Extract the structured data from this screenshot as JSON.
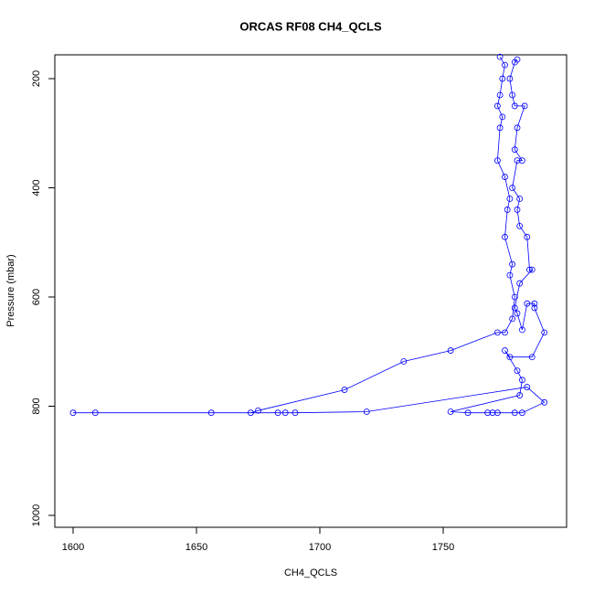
{
  "chart_data": {
    "type": "line",
    "title": "ORCAS RF08 CH4_QCLS",
    "x_label": "CH4_QCLS",
    "y_label": "Pressure (mbar)",
    "color": "#0000ff",
    "markers": true,
    "xlim": [
      1592.6,
      1800
    ],
    "ylim": [
      1021.8,
      156.4
    ],
    "xticks": [
      1600,
      1650,
      1700,
      1750
    ],
    "yticks": [
      200,
      400,
      600,
      800,
      1000
    ],
    "x": [
      1773,
      1775,
      1774,
      1773,
      1772,
      1774,
      1773,
      1772,
      1775,
      1777,
      1776,
      1775,
      1778,
      1777,
      1779,
      1778,
      1775,
      1772,
      1753,
      1734,
      1710,
      1675,
      1672,
      1656,
      1600,
      1609,
      1683,
      1686,
      1690,
      1719,
      1784,
      1791,
      1782,
      1779,
      1772,
      1770,
      1768,
      1760,
      1753,
      1781,
      1782,
      1780,
      1775,
      1777,
      1786,
      1791,
      1787,
      1787,
      1784,
      1782,
      1780,
      1779,
      1781,
      1786,
      1785,
      1784,
      1781,
      1780,
      1781,
      1778,
      1780,
      1782,
      1779,
      1780,
      1783,
      1779,
      1778,
      1777,
      1779,
      1780
    ],
    "values": [
      160,
      175,
      200,
      230,
      250,
      270,
      290,
      350,
      380,
      420,
      440,
      490,
      540,
      560,
      600,
      640,
      665,
      665,
      698,
      718,
      770,
      808,
      812,
      812,
      812,
      812,
      812,
      812,
      812,
      810,
      765,
      793,
      812,
      812,
      812,
      812,
      812,
      812,
      810,
      780,
      752,
      735,
      698,
      710,
      710,
      665,
      620,
      612,
      612,
      660,
      630,
      620,
      575,
      550,
      550,
      490,
      470,
      440,
      420,
      400,
      350,
      350,
      330,
      290,
      250,
      250,
      230,
      200,
      170,
      165
    ]
  }
}
